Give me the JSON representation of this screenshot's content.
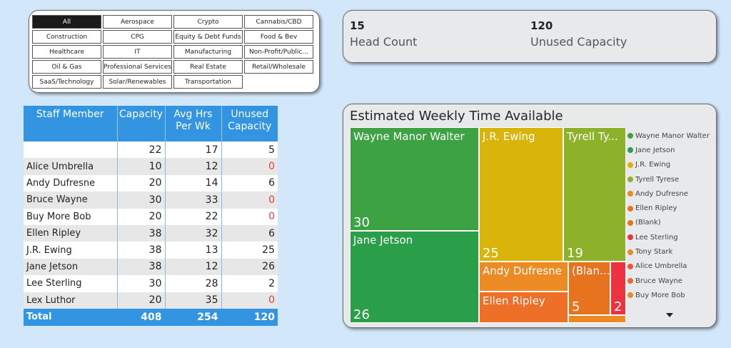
{
  "slicer": {
    "chips": [
      {
        "label": "All",
        "selected": true
      },
      {
        "label": "Aerospace"
      },
      {
        "label": "Crypto"
      },
      {
        "label": "Cannabis/CBD"
      },
      {
        "label": "Construction"
      },
      {
        "label": "CPG"
      },
      {
        "label": "Equity & Debt Funds"
      },
      {
        "label": "Food & Bev"
      },
      {
        "label": "Healthcare"
      },
      {
        "label": "IT"
      },
      {
        "label": "Manufacturing"
      },
      {
        "label": "Non-Profit/Public..."
      },
      {
        "label": "Oil & Gas"
      },
      {
        "label": "Professional Services"
      },
      {
        "label": "Real Estate"
      },
      {
        "label": "Retail/Wholesale"
      },
      {
        "label": "SaaS/Technology"
      },
      {
        "label": "Solar/Renewables"
      },
      {
        "label": "Transportation"
      }
    ]
  },
  "kpi": {
    "head_count_value": "15",
    "head_count_label": "Head Count",
    "unused_value": "120",
    "unused_label": "Unused Capacity"
  },
  "table": {
    "headers": [
      "Staff Member",
      "Capacity",
      "Avg Hrs Per Wk",
      "Unused Capacity"
    ],
    "rows": [
      {
        "name": "",
        "capacity": "22",
        "avg": "17",
        "unused": "5"
      },
      {
        "name": "Alice Umbrella",
        "capacity": "10",
        "avg": "12",
        "unused": "0"
      },
      {
        "name": "Andy Dufresne",
        "capacity": "20",
        "avg": "14",
        "unused": "6"
      },
      {
        "name": "Bruce Wayne",
        "capacity": "30",
        "avg": "33",
        "unused": "0"
      },
      {
        "name": "Buy More Bob",
        "capacity": "20",
        "avg": "22",
        "unused": "0"
      },
      {
        "name": "Ellen Ripley",
        "capacity": "38",
        "avg": "32",
        "unused": "6"
      },
      {
        "name": "J.R. Ewing",
        "capacity": "38",
        "avg": "13",
        "unused": "25"
      },
      {
        "name": "Jane Jetson",
        "capacity": "38",
        "avg": "12",
        "unused": "26"
      },
      {
        "name": "Lee Sterling",
        "capacity": "30",
        "avg": "28",
        "unused": "2"
      },
      {
        "name": "Lex Luthor",
        "capacity": "20",
        "avg": "35",
        "unused": "0"
      }
    ],
    "total": {
      "name": "Total",
      "capacity": "408",
      "avg": "254",
      "unused": "120"
    }
  },
  "treemap": {
    "title": "Estimated Weekly Time Available",
    "tiles": [
      {
        "name": "Wayne Manor Walter",
        "value": "30",
        "color": "#3ca244"
      },
      {
        "name": "Jane Jetson",
        "value": "26",
        "color": "#2a9e48"
      },
      {
        "name": "J.R. Ewing",
        "value": "25",
        "color": "#d9b40a"
      },
      {
        "name": "Tyrell Ty...",
        "value": "19",
        "color": "#8db22a"
      },
      {
        "name": "Andy Dufresne",
        "value": "",
        "color": "#ec8a24"
      },
      {
        "name": "Ellen Ripley",
        "value": "",
        "color": "#ee6f28"
      },
      {
        "name": "(Blan...",
        "value": "5",
        "color": "#e8731e"
      },
      {
        "name": "",
        "value": "2",
        "color": "#ee3340"
      },
      {
        "name": "",
        "value": "",
        "color": "#ec8a24"
      }
    ],
    "legend": [
      {
        "name": "Wayne Manor Walter",
        "color": "#3ca244"
      },
      {
        "name": "Jane Jetson",
        "color": "#2a9e48"
      },
      {
        "name": "J.R. Ewing",
        "color": "#d9b40a"
      },
      {
        "name": "Tyrell Tyrese",
        "color": "#8db22a"
      },
      {
        "name": "Andy Dufresne",
        "color": "#ec8a24"
      },
      {
        "name": "Ellen Ripley",
        "color": "#ee6f28"
      },
      {
        "name": "(Blank)",
        "color": "#e8731e"
      },
      {
        "name": "Lee Sterling",
        "color": "#ee3340"
      },
      {
        "name": "Tony Stark",
        "color": "#ec8a24"
      },
      {
        "name": "Alice Umbrella",
        "color": "#ee5a2e"
      },
      {
        "name": "Bruce Wayne",
        "color": "#ef6a2a"
      },
      {
        "name": "Buy More Bob",
        "color": "#ec8a24"
      }
    ]
  }
}
